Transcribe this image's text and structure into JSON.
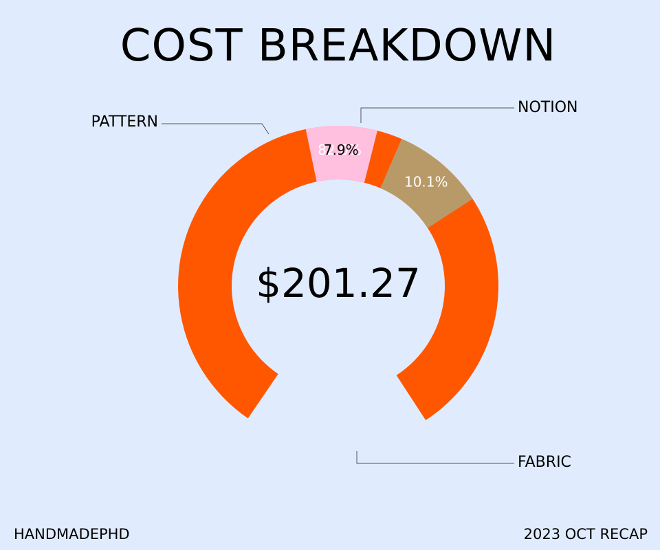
{
  "chart_data": {
    "type": "pie",
    "title": "COST BREAKDOWN",
    "center_label": "$201.27",
    "categories": [
      "FABRIC",
      "PATTERN",
      "NOTION"
    ],
    "values": [
      82.0,
      7.9,
      10.1
    ],
    "data_labels": [
      "82.0%",
      "7.9%",
      "10.1%"
    ],
    "colors": [
      "#ff5700",
      "#fec0de",
      "#b89a68"
    ],
    "label_colors": [
      "#ffffff",
      "#000000",
      "#ffffff"
    ],
    "donut": true
  },
  "footer": {
    "left": "HANDMADEPHD",
    "right": "2023 OCT RECAP"
  }
}
